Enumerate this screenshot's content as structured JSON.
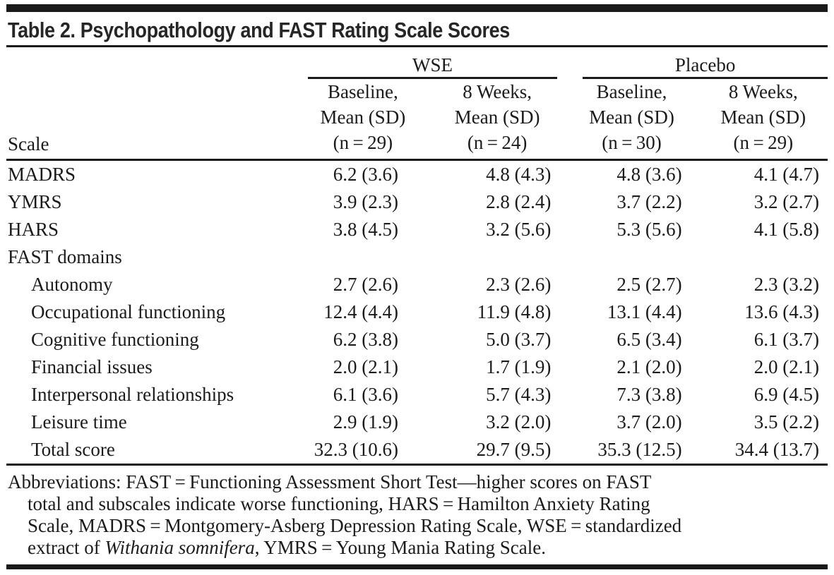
{
  "title": "Table 2. Psychopathology and FAST Rating Scale Scores",
  "table": {
    "scale_header": "Scale",
    "groups": [
      {
        "label": "WSE",
        "columns": [
          {
            "lines": [
              "Baseline,",
              "Mean (SD)",
              "(n = 29)"
            ]
          },
          {
            "lines": [
              "8 Weeks,",
              "Mean (SD)",
              "(n = 24)"
            ]
          }
        ]
      },
      {
        "label": "Placebo",
        "columns": [
          {
            "lines": [
              "Baseline,",
              "Mean (SD)",
              "(n = 30)"
            ]
          },
          {
            "lines": [
              "8 Weeks,",
              "Mean (SD)",
              "(n = 29)"
            ]
          }
        ]
      }
    ],
    "rows": [
      {
        "label": "MADRS",
        "indent": false,
        "values": [
          "6.2 (3.6)",
          "4.8 (4.3)",
          "4.8 (3.6)",
          "4.1 (4.7)"
        ]
      },
      {
        "label": "YMRS",
        "indent": false,
        "values": [
          "3.9 (2.3)",
          "2.8 (2.4)",
          "3.7 (2.2)",
          "3.2 (2.7)"
        ]
      },
      {
        "label": "HARS",
        "indent": false,
        "values": [
          "3.8 (4.5)",
          "3.2 (5.6)",
          "5.3 (5.6)",
          "4.1 (5.8)"
        ]
      },
      {
        "label": "FAST domains",
        "indent": false,
        "values": [
          "",
          "",
          "",
          ""
        ]
      },
      {
        "label": "Autonomy",
        "indent": true,
        "values": [
          "2.7 (2.6)",
          "2.3 (2.6)",
          "2.5 (2.7)",
          "2.3 (3.2)"
        ]
      },
      {
        "label": "Occupational functioning",
        "indent": true,
        "values": [
          "12.4 (4.4)",
          "11.9 (4.8)",
          "13.1 (4.4)",
          "13.6 (4.3)"
        ]
      },
      {
        "label": "Cognitive functioning",
        "indent": true,
        "values": [
          "6.2 (3.8)",
          "5.0 (3.7)",
          "6.5 (3.4)",
          "6.1 (3.7)"
        ]
      },
      {
        "label": "Financial issues",
        "indent": true,
        "values": [
          "2.0 (2.1)",
          "1.7 (1.9)",
          "2.1 (2.0)",
          "2.0 (2.1)"
        ]
      },
      {
        "label": "Interpersonal relationships",
        "indent": true,
        "values": [
          "6.1 (3.6)",
          "5.7 (4.3)",
          "7.3 (3.8)",
          "6.9 (4.5)"
        ]
      },
      {
        "label": "Leisure time",
        "indent": true,
        "values": [
          "2.9 (1.9)",
          "3.2 (2.0)",
          "3.7 (2.0)",
          "3.5 (2.2)"
        ]
      },
      {
        "label": "Total score",
        "indent": true,
        "values": [
          "32.3 (10.6)",
          "29.7 (9.5)",
          "35.3 (12.5)",
          "34.4 (13.7)"
        ]
      }
    ]
  },
  "footnote": {
    "lines": [
      "Abbreviations: FAST = Functioning Assessment Short Test—higher scores on FAST",
      "total and subscales indicate worse functioning, HARS = Hamilton Anxiety Rating",
      "Scale, MADRS = Montgomery-Asberg Depression Rating Scale, WSE = standardized"
    ],
    "last_line": {
      "pre": "extract of ",
      "italic": "Withania somnifera",
      "post": ", YMRS = Young Mania Rating Scale."
    }
  },
  "colors": {
    "text": "#1b1b1b",
    "rule": "#1a1a1a",
    "background": "#ffffff"
  }
}
